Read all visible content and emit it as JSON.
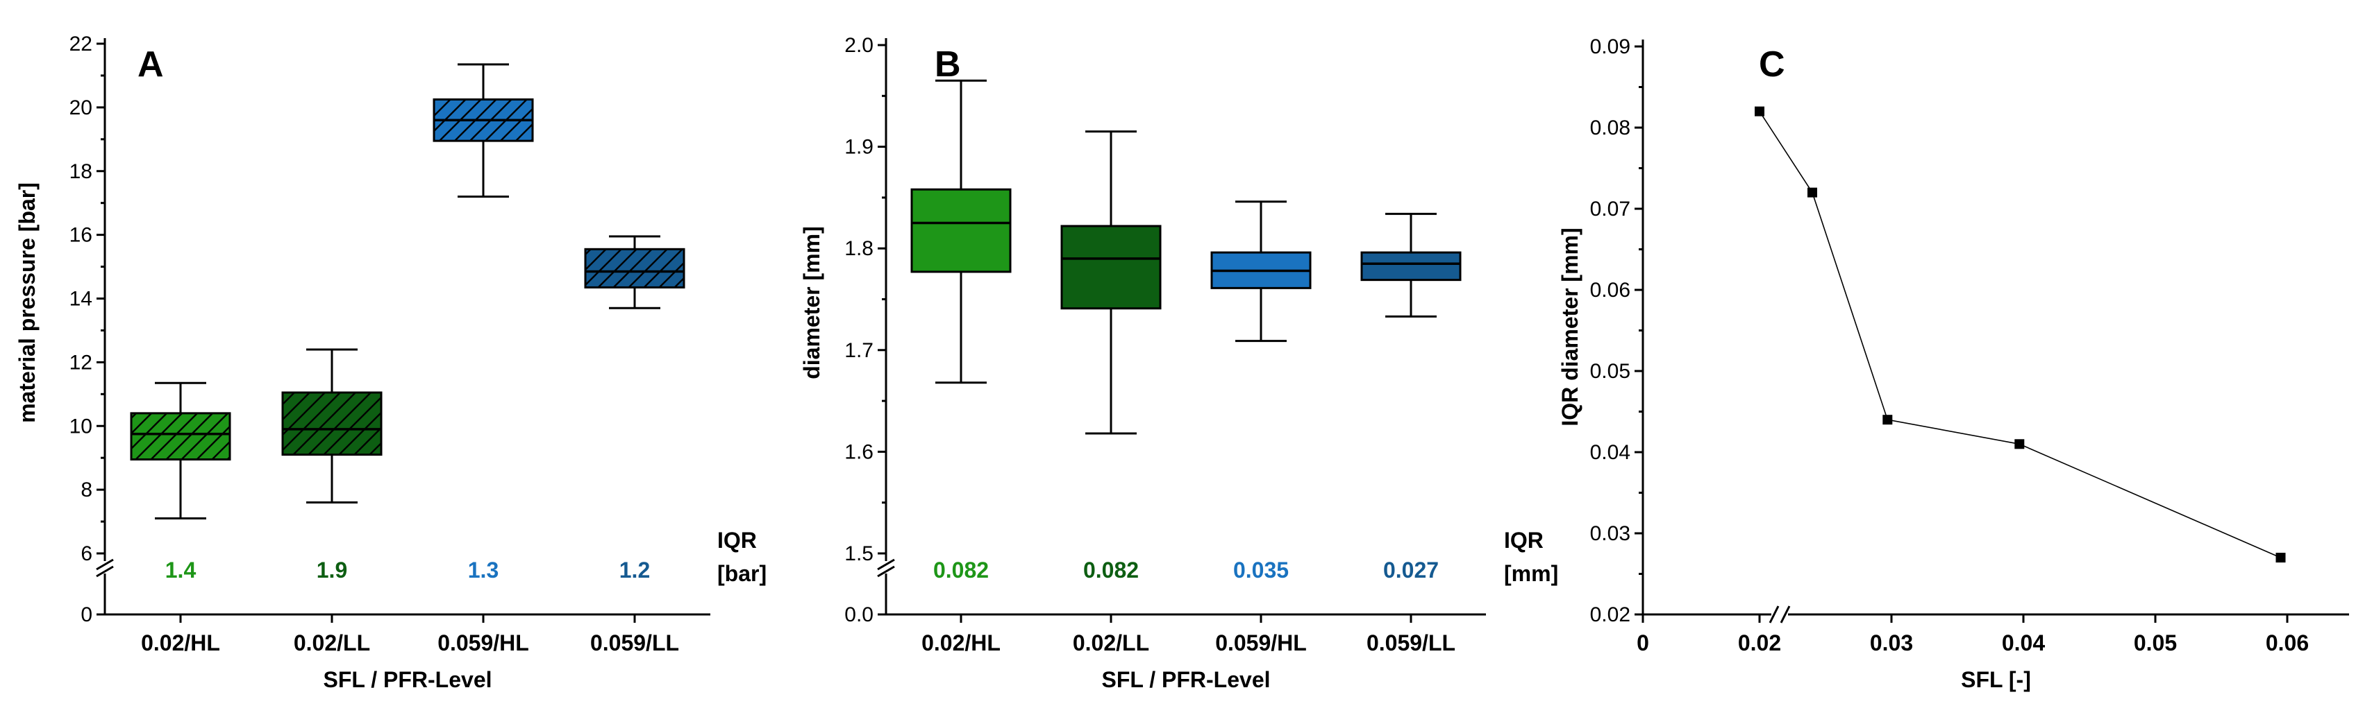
{
  "colors": {
    "green_light": "#1e9618",
    "green_dark": "#0d5e12",
    "blue_light": "#1a73c0",
    "blue_dark": "#155a91"
  },
  "chart_data": [
    {
      "panel": "A",
      "type": "box",
      "xlabel": "SFL / PFR-Level",
      "ylabel": "material pressure [bar]",
      "ylim": [
        6,
        22
      ],
      "yticks": [
        "0",
        "6",
        "8",
        "10",
        "12",
        "14",
        "16",
        "18",
        "20",
        "22"
      ],
      "axis_break": "between 0 and 6",
      "hatched": true,
      "categories": [
        "0.02/HL",
        "0.02/LL",
        "0.059/HL",
        "0.059/LL"
      ],
      "boxes": [
        {
          "min": 7.1,
          "q1": 8.95,
          "median": 9.75,
          "q3": 10.4,
          "max": 11.35,
          "color": "#1e9618"
        },
        {
          "min": 7.6,
          "q1": 9.1,
          "median": 9.9,
          "q3": 11.05,
          "max": 12.4,
          "color": "#0d5e12"
        },
        {
          "min": 17.2,
          "q1": 18.95,
          "median": 19.6,
          "q3": 20.25,
          "max": 21.35,
          "color": "#1a73c0"
        },
        {
          "min": 13.7,
          "q1": 14.35,
          "median": 14.85,
          "q3": 15.55,
          "max": 15.95,
          "color": "#155a91"
        }
      ],
      "iqr_header": [
        "IQR",
        "[bar]"
      ],
      "iqr_values": [
        "1.4",
        "1.9",
        "1.3",
        "1.2"
      ]
    },
    {
      "panel": "B",
      "type": "box",
      "xlabel": "SFL / PFR-Level",
      "ylabel": "diameter [mm]",
      "ylim": [
        1.5,
        2.0
      ],
      "yticks": [
        "0.0",
        "1.5",
        "1.6",
        "1.7",
        "1.8",
        "1.9",
        "2.0"
      ],
      "axis_break": "between 0.0 and 1.5",
      "hatched": false,
      "categories": [
        "0.02/HL",
        "0.02/LL",
        "0.059/HL",
        "0.059/LL"
      ],
      "boxes": [
        {
          "min": 1.668,
          "q1": 1.777,
          "median": 1.825,
          "q3": 1.858,
          "max": 1.965,
          "color": "#1e9618"
        },
        {
          "min": 1.618,
          "q1": 1.741,
          "median": 1.79,
          "q3": 1.822,
          "max": 1.915,
          "color": "#0d5e12"
        },
        {
          "min": 1.709,
          "q1": 1.761,
          "median": 1.778,
          "q3": 1.796,
          "max": 1.846,
          "color": "#1a73c0"
        },
        {
          "min": 1.733,
          "q1": 1.769,
          "median": 1.785,
          "q3": 1.796,
          "max": 1.834,
          "color": "#155a91"
        }
      ],
      "iqr_header": [
        "IQR",
        "[mm]"
      ],
      "iqr_values": [
        "0.082",
        "0.082",
        "0.035",
        "0.027"
      ]
    },
    {
      "panel": "C",
      "type": "line",
      "xlabel": "SFL [-]",
      "ylabel": "IQR diameter [mm]",
      "xlim": [
        0.0125,
        0.0625
      ],
      "ylim": [
        0.02,
        0.09
      ],
      "xticks": [
        "0",
        "0.02",
        "0.03",
        "0.04",
        "0.05",
        "0.06"
      ],
      "yticks": [
        "0.02",
        "0.03",
        "0.04",
        "0.05",
        "0.06",
        "0.07",
        "0.08",
        "0.09"
      ],
      "axis_break": "x between 0 and 0.02",
      "points": [
        {
          "x": 0.02,
          "y": 0.082
        },
        {
          "x": 0.024,
          "y": 0.072
        },
        {
          "x": 0.0297,
          "y": 0.044
        },
        {
          "x": 0.0397,
          "y": 0.041
        },
        {
          "x": 0.0595,
          "y": 0.027
        }
      ]
    }
  ]
}
